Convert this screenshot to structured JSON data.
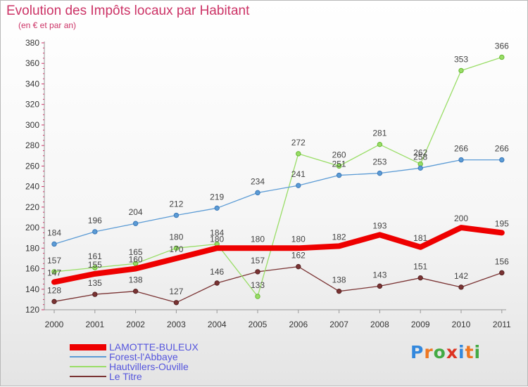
{
  "title": "Evolution des Impôts locaux par Habitant",
  "subtitle": "(en € et par an)",
  "brand": {
    "letters": [
      "P",
      "r",
      "o",
      "x",
      "i",
      "t",
      "i"
    ],
    "colors": [
      "#3388dd",
      "#ee7722",
      "#44aa44",
      "#dd3322",
      "#3388dd",
      "#ee7722",
      "#44aa44"
    ]
  },
  "chart_data": {
    "type": "line",
    "x": [
      "2000",
      "2001",
      "2002",
      "2003",
      "2004",
      "2005",
      "2006",
      "2007",
      "2008",
      "2009",
      "2010",
      "2011"
    ],
    "ylim": [
      120,
      380
    ],
    "yticks": [
      120,
      140,
      160,
      180,
      200,
      220,
      240,
      260,
      280,
      300,
      320,
      340,
      360,
      380
    ],
    "grid": false,
    "legend_position": "bottom-left",
    "series": [
      {
        "name": "LAMOTTE-BULEUX",
        "color": "#ee0000",
        "values": [
          147,
          155,
          160,
          170,
          180,
          180,
          180,
          182,
          193,
          181,
          200,
          195
        ]
      },
      {
        "name": "Forest-l'Abbaye",
        "color": "#5b9bd5",
        "values": [
          184,
          196,
          204,
          212,
          219,
          234,
          241,
          251,
          253,
          258,
          266,
          266
        ]
      },
      {
        "name": "Hautvillers-Ouville",
        "color": "#99dd66",
        "values": [
          157,
          161,
          165,
          180,
          184,
          133,
          272,
          260,
          281,
          262,
          353,
          366
        ]
      },
      {
        "name": "Le Titre",
        "color": "#7a3333",
        "values": [
          128,
          135,
          138,
          127,
          146,
          157,
          162,
          138,
          143,
          151,
          142,
          156
        ]
      }
    ]
  }
}
